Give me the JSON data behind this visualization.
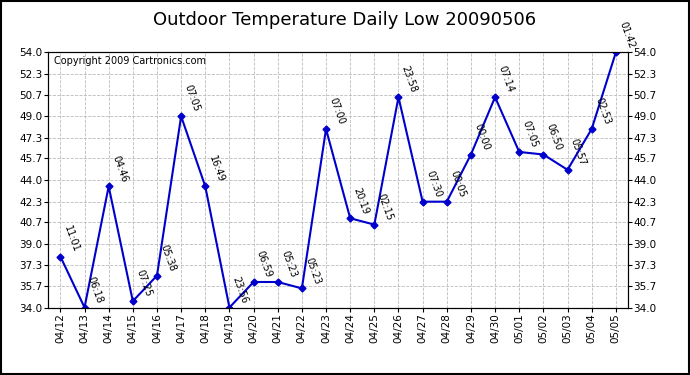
{
  "title": "Outdoor Temperature Daily Low 20090506",
  "copyright": "Copyright 2009 Cartronics.com",
  "dates": [
    "04/12",
    "04/13",
    "04/14",
    "04/15",
    "04/16",
    "04/17",
    "04/18",
    "04/19",
    "04/20",
    "04/21",
    "04/22",
    "04/23",
    "04/24",
    "04/25",
    "04/26",
    "04/27",
    "04/28",
    "04/29",
    "04/30",
    "05/01",
    "05/02",
    "05/03",
    "05/04",
    "05/05"
  ],
  "values": [
    38.0,
    34.0,
    43.5,
    34.5,
    36.5,
    49.0,
    43.5,
    34.0,
    36.0,
    36.0,
    35.5,
    48.0,
    41.0,
    40.5,
    50.5,
    42.3,
    42.3,
    46.0,
    50.5,
    46.2,
    46.0,
    44.8,
    48.0,
    54.0
  ],
  "labels": [
    "11:01",
    "06:18",
    "04:46",
    "07:25",
    "05:38",
    "07:05",
    "16:49",
    "23:56",
    "06:59",
    "05:23",
    "05:23",
    "07:00",
    "20:19",
    "02:15",
    "23:58",
    "07:30",
    "00:05",
    "00:00",
    "07:14",
    "07:05",
    "06:50",
    "05:57",
    "02:53",
    "01:42"
  ],
  "line_color": "#0000cc",
  "marker_color": "#0000cc",
  "background_color": "#ffffff",
  "grid_color": "#bbbbbb",
  "ylim": [
    34.0,
    54.0
  ],
  "yticks": [
    34.0,
    35.7,
    37.3,
    39.0,
    40.7,
    42.3,
    44.0,
    45.7,
    47.3,
    49.0,
    50.7,
    52.3,
    54.0
  ],
  "title_fontsize": 13,
  "label_fontsize": 7,
  "axis_fontsize": 7.5,
  "copyright_fontsize": 7
}
